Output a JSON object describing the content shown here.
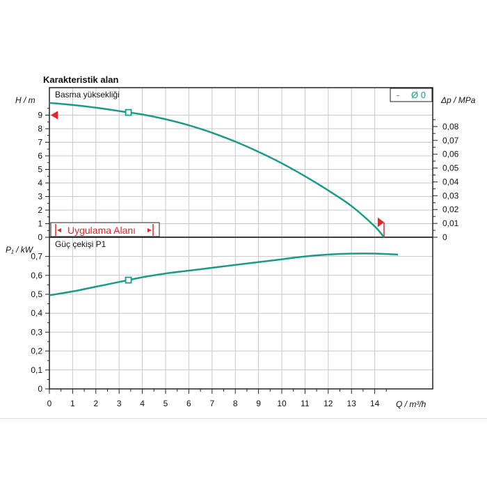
{
  "title": "Karakteristik alan",
  "chart_data": [
    {
      "type": "line",
      "panel_label": "Basma yüksekliği",
      "ylabel": "H / m",
      "ylabel_right": "Δp / MPa",
      "ylim": [
        0,
        10
      ],
      "xlim": [
        0,
        15
      ],
      "yticks": [
        "0",
        "1",
        "2",
        "3",
        "4",
        "5",
        "6",
        "7",
        "8",
        "9"
      ],
      "yticks_right": [
        "0",
        "0,01",
        "0,02",
        "0,03",
        "0,04",
        "0,05",
        "0,06",
        "0,07",
        "0,08"
      ],
      "legend": {
        "dash": "-",
        "label": "Ø 0"
      },
      "range_label": "Uygulama Alanı",
      "series": [
        {
          "x": [
            0,
            1,
            2,
            3,
            3.4,
            4,
            5,
            6,
            7,
            8,
            9,
            10,
            11,
            12,
            13,
            14,
            14.4
          ],
          "y": [
            9.9,
            9.75,
            9.55,
            9.3,
            9.2,
            9.05,
            8.7,
            8.25,
            7.7,
            7.05,
            6.3,
            5.45,
            4.5,
            3.45,
            2.3,
            0.8,
            0
          ],
          "marker_x": 3.4,
          "marker_y": 9.2
        }
      ],
      "range_markers": [
        {
          "x": 0,
          "y": 9.0
        },
        {
          "x": 14.4,
          "y": 1.1
        }
      ]
    },
    {
      "type": "line",
      "panel_label": "Güç çekişi P1",
      "ylabel": "P₁ / kW",
      "ylim": [
        0,
        0.72
      ],
      "xlim": [
        0,
        15
      ],
      "yticks": [
        "0",
        "0,1",
        "0,2",
        "0,3",
        "0,4",
        "0,5",
        "0,6",
        "0,7"
      ],
      "xlabel": "Q / m³/h",
      "xticks": [
        "0",
        "1",
        "2",
        "3",
        "4",
        "5",
        "6",
        "7",
        "8",
        "9",
        "10",
        "11",
        "12",
        "13",
        "14"
      ],
      "series": [
        {
          "x": [
            0,
            1,
            2,
            3,
            3.4,
            4,
            5,
            6,
            7,
            8,
            9,
            10,
            11,
            12,
            13,
            14,
            15
          ],
          "y": [
            0.495,
            0.515,
            0.54,
            0.565,
            0.575,
            0.59,
            0.61,
            0.625,
            0.64,
            0.655,
            0.67,
            0.685,
            0.7,
            0.71,
            0.715,
            0.715,
            0.71
          ],
          "marker_x": 3.4,
          "marker_y": 0.575
        }
      ]
    }
  ]
}
